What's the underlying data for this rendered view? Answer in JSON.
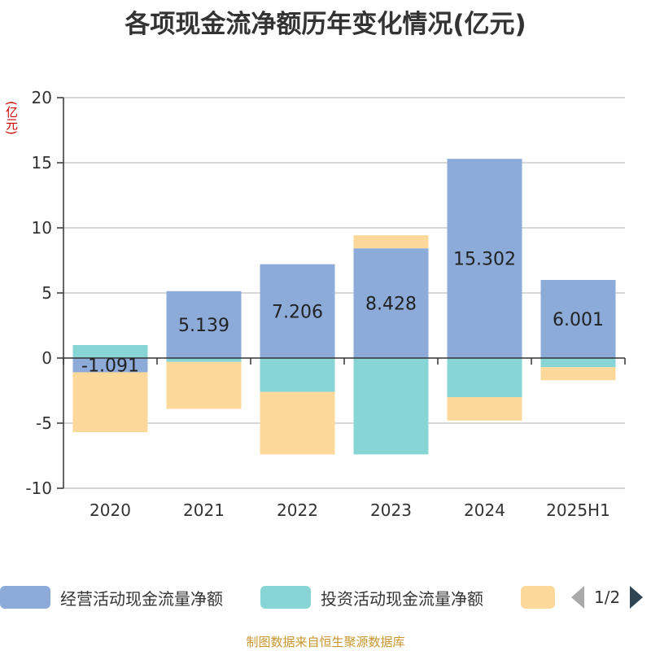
{
  "title": "各项现金流净额历年变化情况(亿元)",
  "unit_label": "(亿元)",
  "source": "制图数据来自恒生聚源数据库",
  "legend": {
    "items": [
      {
        "label": "经营活动现金流量净额",
        "color": "#8dabd9"
      },
      {
        "label": "投资活动现金流量净额",
        "color": "#88d5d6"
      },
      {
        "label": "",
        "color": "#fdd89b"
      }
    ],
    "pager": "1/2"
  },
  "chart_data": {
    "type": "bar",
    "stacked": true,
    "categories": [
      "2020",
      "2021",
      "2022",
      "2023",
      "2024",
      "2025H1"
    ],
    "ylim": [
      -10,
      20
    ],
    "yticks": [
      -10,
      -5,
      0,
      5,
      10,
      15,
      20
    ],
    "grid": true,
    "legend_position": "bottom",
    "series": [
      {
        "name": "经营活动现金流量净额",
        "color": "#8dabd9",
        "values": [
          -1.091,
          5.139,
          7.206,
          8.428,
          15.302,
          6.001
        ],
        "labels": [
          "-1.091",
          "5.139",
          "7.206",
          "8.428",
          "15.302",
          "6.001"
        ]
      },
      {
        "color": "#88d5d6",
        "values": [
          1.0,
          -0.3,
          -2.6,
          -7.4,
          -3.0,
          -0.7
        ]
      },
      {
        "color": "#fdd89b",
        "values": [
          -4.6,
          -3.6,
          -4.8,
          1.0,
          -1.8,
          -1.0
        ]
      }
    ]
  }
}
